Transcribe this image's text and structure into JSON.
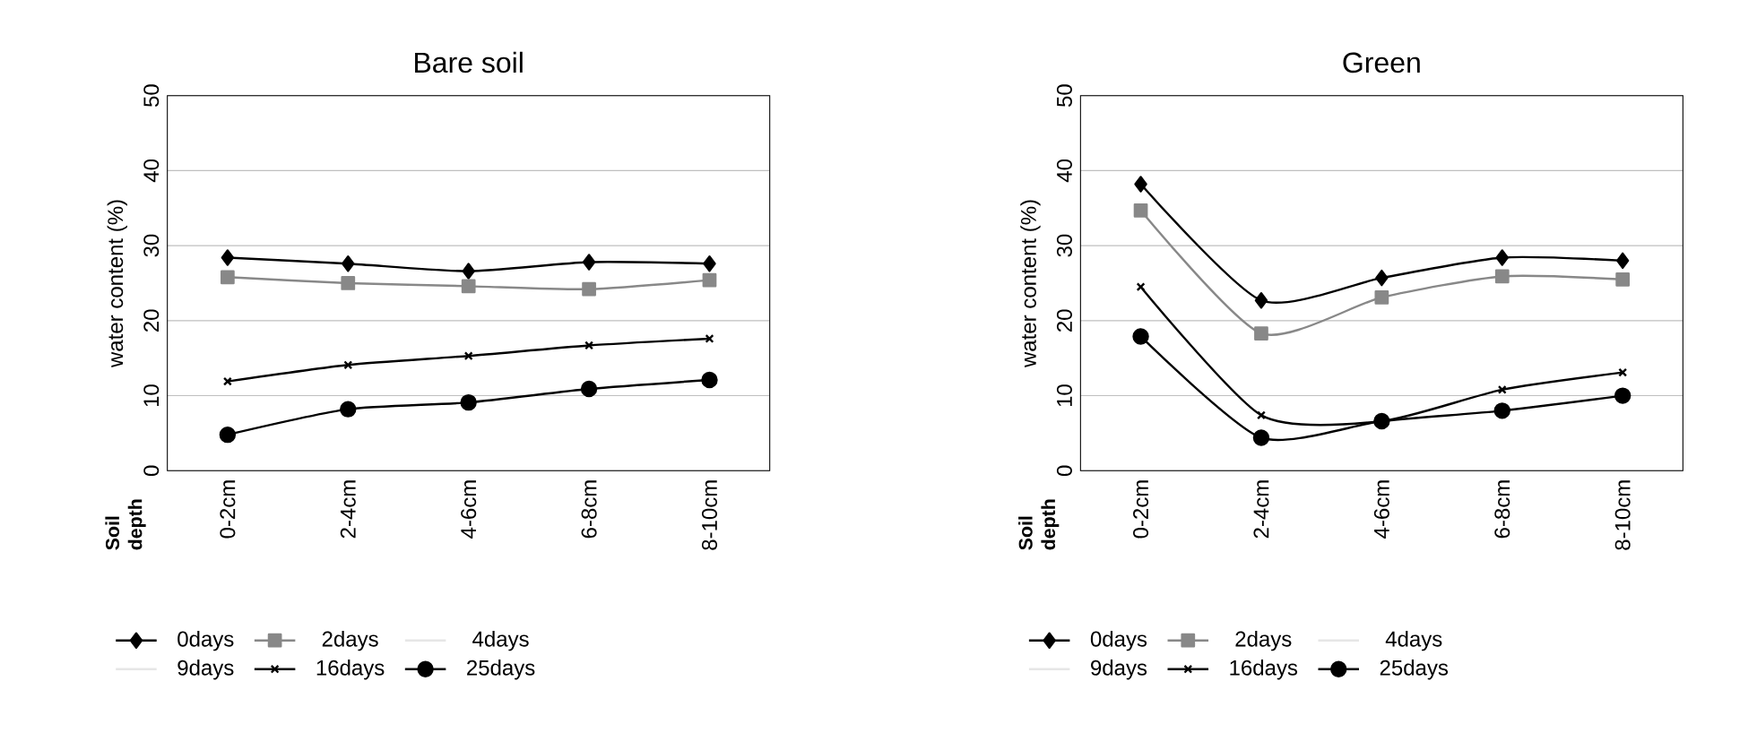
{
  "chart_data": [
    {
      "type": "line",
      "title": "Bare soil",
      "annotations": [
        "Soil depth"
      ],
      "ylabel": "water content (%)",
      "categories": [
        "0-2cm",
        "2-4cm",
        "4-6cm",
        "6-8cm",
        "8-10cm"
      ],
      "ylim": [
        0,
        50
      ],
      "yticks": [
        0,
        10,
        20,
        30,
        40,
        50
      ],
      "grid": "y",
      "legend": "bottom",
      "series": [
        {
          "name": "0days",
          "color": "#000000",
          "marker": "diamond",
          "values": [
            28.4,
            27.6,
            26.6,
            27.8,
            27.6
          ]
        },
        {
          "name": "2days",
          "color": "#888888",
          "marker": "square",
          "values": [
            25.8,
            25.0,
            24.6,
            24.2,
            25.4
          ]
        },
        {
          "name": "4days",
          "color": "#e6e6e6",
          "marker": "none",
          "values": [
            null,
            null,
            null,
            null,
            null
          ]
        },
        {
          "name": "9days",
          "color": "#e6e6e6",
          "marker": "none",
          "values": [
            null,
            null,
            null,
            null,
            null
          ]
        },
        {
          "name": "16days",
          "color": "#000000",
          "marker": "cross",
          "values": [
            11.9,
            14.1,
            15.3,
            16.7,
            17.6
          ]
        },
        {
          "name": "25days",
          "color": "#000000",
          "marker": "circle",
          "values": [
            4.8,
            8.2,
            9.1,
            10.9,
            12.1
          ]
        }
      ]
    },
    {
      "type": "line",
      "title": "Green",
      "annotations": [
        "Soil depth"
      ],
      "ylabel": "water content (%)",
      "categories": [
        "0-2cm",
        "2-4cm",
        "4-6cm",
        "6-8cm",
        "8-10cm"
      ],
      "ylim": [
        0,
        50
      ],
      "yticks": [
        0,
        10,
        20,
        30,
        40,
        50
      ],
      "grid": "y",
      "legend": "bottom",
      "series": [
        {
          "name": "0days",
          "color": "#000000",
          "marker": "diamond",
          "values": [
            38.2,
            22.7,
            25.7,
            28.4,
            28.0
          ]
        },
        {
          "name": "2days",
          "color": "#888888",
          "marker": "square",
          "values": [
            34.7,
            18.3,
            23.1,
            25.9,
            25.5
          ]
        },
        {
          "name": "4days",
          "color": "#e6e6e6",
          "marker": "none",
          "values": [
            null,
            null,
            null,
            null,
            null
          ]
        },
        {
          "name": "9days",
          "color": "#e6e6e6",
          "marker": "none",
          "values": [
            null,
            null,
            null,
            null,
            null
          ]
        },
        {
          "name": "16days",
          "color": "#000000",
          "marker": "cross",
          "values": [
            24.5,
            7.4,
            6.6,
            10.8,
            13.1
          ]
        },
        {
          "name": "25days",
          "color": "#000000",
          "marker": "circle",
          "values": [
            17.9,
            4.4,
            6.6,
            8.0,
            10.0
          ]
        }
      ]
    }
  ]
}
